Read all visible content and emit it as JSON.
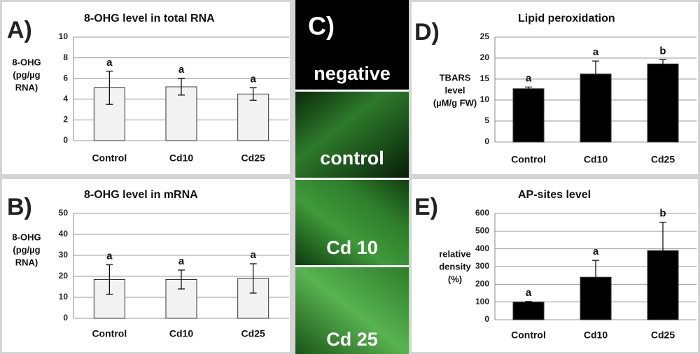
{
  "chart_data": [
    {
      "type": "bar",
      "panel": "A)",
      "title": "8-OHG level in total RNA",
      "ylabel": [
        "8-OHG",
        "(pg/µg",
        "RNA)"
      ],
      "categories": [
        "Control",
        "Cd10",
        "Cd25"
      ],
      "values": [
        5.1,
        5.2,
        4.5
      ],
      "errors": [
        1.6,
        0.8,
        0.6
      ],
      "annotations": [
        "a",
        "a",
        "a"
      ],
      "color": "#f2f2f2",
      "ylim": [
        0,
        10
      ],
      "yticks": [
        0,
        2,
        4,
        6,
        8,
        10
      ],
      "grid": true
    },
    {
      "type": "bar",
      "panel": "B)",
      "title": "8-OHG level in mRNA",
      "ylabel": [
        "8-OHG",
        "(pg/µg",
        "RNA)"
      ],
      "categories": [
        "Control",
        "Cd10",
        "Cd25"
      ],
      "values": [
        18.5,
        18.5,
        19
      ],
      "errors": [
        7,
        4.5,
        7
      ],
      "annotations": [
        "a",
        "a",
        "a"
      ],
      "color": "#f2f2f2",
      "ylim": [
        0,
        50
      ],
      "yticks": [
        0,
        10,
        20,
        30,
        40,
        50
      ],
      "grid": true
    },
    {
      "type": "bar",
      "panel": "D)",
      "title": "Lipid peroxidation",
      "ylabel": [
        "TBARS",
        "level",
        "(µM/g FW)"
      ],
      "categories": [
        "Control",
        "Cd10",
        "Cd25"
      ],
      "values": [
        12.7,
        16.2,
        18.6
      ],
      "errors": [
        0.4,
        3.1,
        1.0
      ],
      "annotations": [
        "a",
        "a",
        "b"
      ],
      "color": "#000000",
      "ylim": [
        0,
        25
      ],
      "yticks": [
        0,
        5,
        10,
        15,
        20,
        25
      ],
      "grid": true
    },
    {
      "type": "bar",
      "panel": "E)",
      "title": "AP-sites level",
      "ylabel": [
        "relative",
        "density",
        "(%)"
      ],
      "categories": [
        "Control",
        "Cd10",
        "Cd25"
      ],
      "values": [
        100,
        240,
        390
      ],
      "errors": [
        3,
        95,
        160
      ],
      "annotations": [
        "a",
        "a",
        "b"
      ],
      "color": "#000000",
      "ylim": [
        0,
        600
      ],
      "yticks": [
        0,
        100,
        200,
        300,
        400,
        500,
        600
      ],
      "grid": true
    }
  ],
  "images": {
    "panel": "C)",
    "captions": [
      "negative",
      "control",
      "Cd 10",
      "Cd 25"
    ]
  }
}
